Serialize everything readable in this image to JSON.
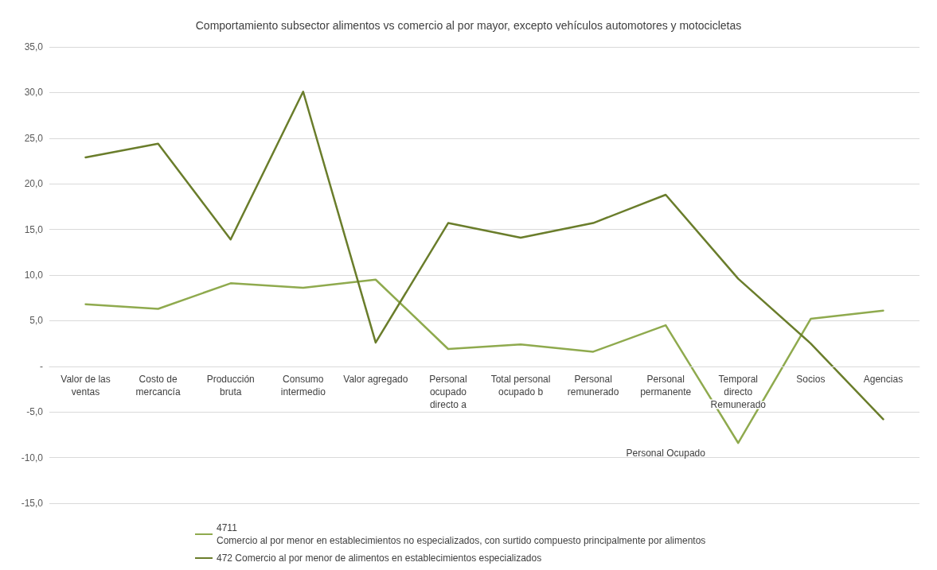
{
  "chart_data": {
    "type": "line",
    "title": "Comportamiento subsector alimentos vs comercio al por mayor, excepto vehículos automotores y motocicletas",
    "categories": [
      "Valor de las\nventas",
      "Costo de\nmercancía",
      "Producción\nbruta",
      "Consumo\nintermedio",
      "Valor agregado",
      "Personal\nocupado\ndirecto a",
      "Total personal\nocupado b",
      "Personal\nremunerado",
      "Personal\npermanente",
      "Temporal\ndirecto\nRemunerado",
      "Socios",
      "Agencias"
    ],
    "series": [
      {
        "name": "4711\nComercio al por menor en establecimientos no especializados, con surtido compuesto principalmente por alimentos",
        "color": "#8faa4e",
        "values": [
          6.8,
          6.3,
          9.1,
          8.6,
          9.5,
          1.9,
          2.4,
          1.6,
          4.5,
          -8.4,
          5.2,
          6.1
        ]
      },
      {
        "name": "472 Comercio al por menor de alimentos en establecimientos especializados",
        "color": "#6a7d2b",
        "values": [
          22.9,
          24.4,
          13.9,
          30.1,
          2.6,
          15.7,
          14.1,
          15.7,
          18.8,
          9.6,
          2.5,
          -5.8
        ]
      }
    ],
    "ylim": [
      -15,
      35
    ],
    "yticks": [
      {
        "value": -15,
        "label": "-15,0"
      },
      {
        "value": -10,
        "label": "-10,0"
      },
      {
        "value": -5,
        "label": "-5,0"
      },
      {
        "value": 0,
        "label": "-"
      },
      {
        "value": 5,
        "label": "5,0"
      },
      {
        "value": 10,
        "label": "10,0"
      },
      {
        "value": 15,
        "label": "15,0"
      },
      {
        "value": 20,
        "label": "20,0"
      },
      {
        "value": 25,
        "label": "25,0"
      },
      {
        "value": 30,
        "label": "30,0"
      },
      {
        "value": 35,
        "label": "35,0"
      }
    ],
    "annotations": [
      "Personal Ocupado"
    ],
    "grid": "y",
    "legend": "bottom",
    "marker": "none",
    "line_style": "solid"
  }
}
